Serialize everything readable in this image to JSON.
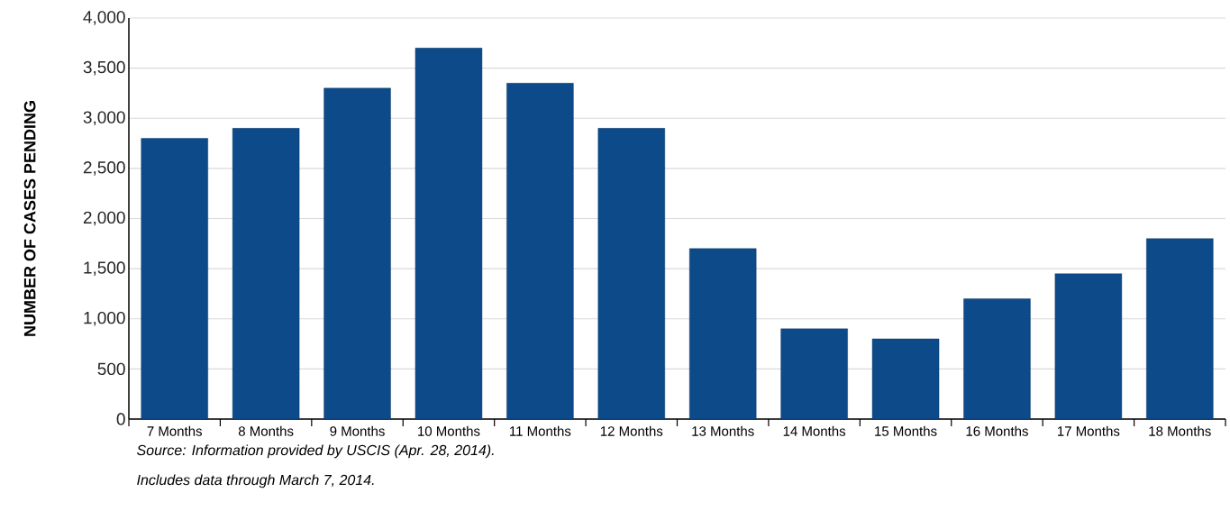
{
  "chart_data": {
    "type": "bar",
    "ylabel": "NUMBER OF CASES PENDING",
    "categories": [
      "7 Months",
      "8 Months",
      "9 Months",
      "10 Months",
      "11 Months",
      "12 Months",
      "13 Months",
      "14 Months",
      "15 Months",
      "16 Months",
      "17 Months",
      "18 Months"
    ],
    "values": [
      2800,
      2900,
      3300,
      3700,
      3350,
      2900,
      1700,
      900,
      800,
      1200,
      1450,
      1800
    ],
    "color": "#0d4a8a",
    "ylim": [
      0,
      4000
    ],
    "yticks": [
      0,
      500,
      {
        "value": 1000,
        "label": "1,000"
      },
      {
        "value": 1500,
        "label": "1,500"
      },
      {
        "value": 2000,
        "label": "2,000"
      },
      {
        "value": 2500,
        "label": "2,500"
      },
      {
        "value": 3000,
        "label": "3,000"
      },
      {
        "value": 3500,
        "label": "3,500"
      },
      {
        "value": 4000,
        "label": "4,000"
      }
    ],
    "grid": "y",
    "annotations": [
      "Source:  Information provided by USCIS (Apr. 28, 2014).",
      "Includes data through March 7, 2014."
    ]
  }
}
